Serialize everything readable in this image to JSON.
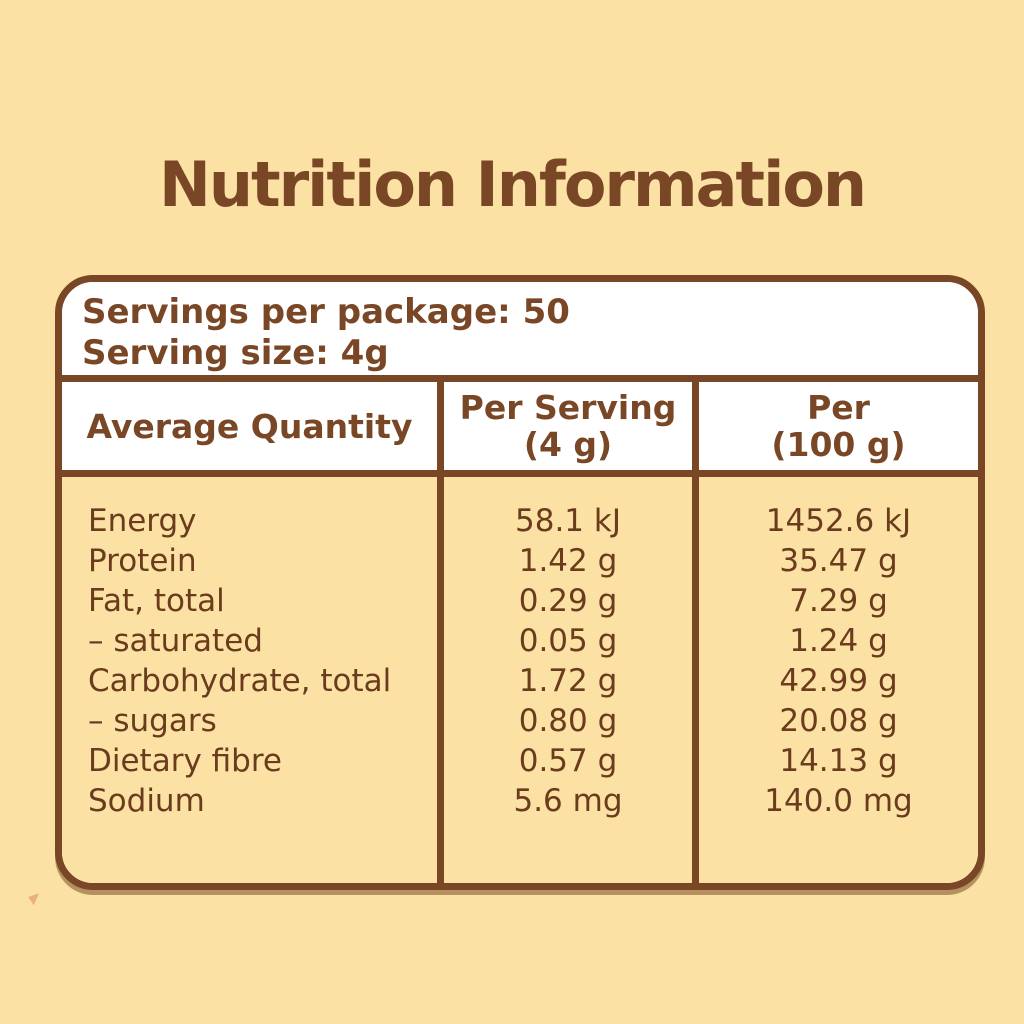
{
  "page": {
    "title": "Nutrition Information",
    "background_color": "#FBE1A4",
    "brown_color": "#7A4726",
    "text_color": "#6B3B1D"
  },
  "servings": {
    "per_package": "Servings per package: 50",
    "size": "Serving size: 4g"
  },
  "table": {
    "headers": [
      {
        "label": "Average Quantity",
        "sub": ""
      },
      {
        "label": "Per Serving",
        "sub": "(4 g)"
      },
      {
        "label": "Per",
        "sub": "(100 g)"
      }
    ],
    "rows": [
      {
        "label": "Energy",
        "per_serving": "58.1 kJ",
        "per_100g": "1452.6 kJ"
      },
      {
        "label": "Protein",
        "per_serving": "1.42 g",
        "per_100g": "35.47 g"
      },
      {
        "label": "Fat, total",
        "per_serving": "0.29 g",
        "per_100g": "7.29 g"
      },
      {
        "label": "– saturated",
        "per_serving": "0.05 g",
        "per_100g": "1.24 g"
      },
      {
        "label": "Carbohydrate, total",
        "per_serving": "1.72 g",
        "per_100g": "42.99 g"
      },
      {
        "label": "– sugars",
        "per_serving": "0.80 g",
        "per_100g": "20.08 g"
      },
      {
        "label": "Dietary fibre",
        "per_serving": "0.57 g",
        "per_100g": "14.13 g"
      },
      {
        "label": "Sodium",
        "per_serving": "5.6 mg",
        "per_100g": "140.0 mg"
      }
    ]
  }
}
